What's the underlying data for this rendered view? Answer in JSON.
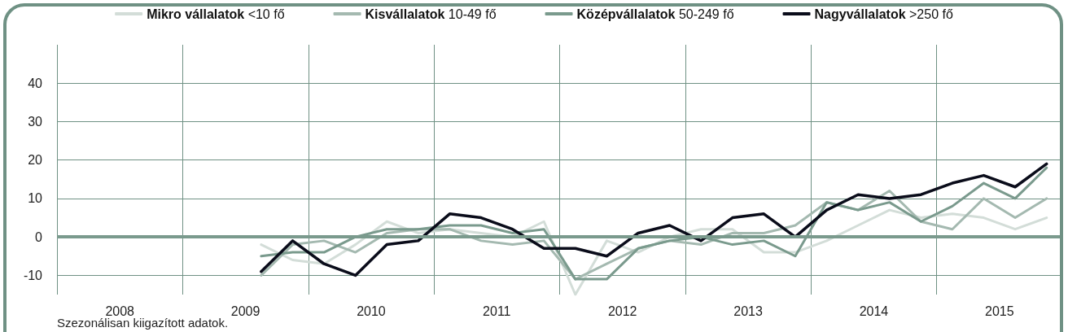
{
  "chart_data": {
    "type": "line",
    "x": [
      2009.625,
      2009.875,
      2010.125,
      2010.375,
      2010.625,
      2010.875,
      2011.125,
      2011.375,
      2011.625,
      2011.875,
      2012.125,
      2012.375,
      2012.625,
      2012.875,
      2013.125,
      2013.375,
      2013.625,
      2013.875,
      2014.125,
      2014.375,
      2014.625,
      2014.875,
      2015.125,
      2015.375,
      2015.625,
      2015.875
    ],
    "series": [
      {
        "name": "Mikro vállalatok <10 fő",
        "color": "#d3ddd8",
        "values": [
          -2,
          -6,
          -7,
          -2,
          4,
          1,
          2,
          1,
          0,
          4,
          -15,
          -1,
          -4,
          0,
          2,
          2,
          -4,
          -4,
          -1,
          3,
          7,
          5,
          6,
          5,
          2,
          5
        ]
      },
      {
        "name": "Kisvállalatok 10-49 fő",
        "color": "#a4b9b0",
        "values": [
          -10,
          -2,
          -1,
          -4,
          1,
          2,
          2,
          -1,
          -2,
          -1,
          -11,
          -7,
          -3,
          -1,
          -2,
          1,
          1,
          3,
          9,
          7,
          12,
          4,
          2,
          10,
          5,
          10
        ]
      },
      {
        "name": "Középvállalatok 50-249 fő",
        "color": "#7a9a8d",
        "values": [
          -5,
          -4,
          -4,
          0,
          2,
          2,
          3,
          3,
          1,
          2,
          -11,
          -11,
          -3,
          -1,
          0,
          -2,
          -1,
          -5,
          9,
          7,
          9,
          4,
          8,
          14,
          10,
          18
        ]
      },
      {
        "name": "Nagyvállalatok >250 fő",
        "color": "#0a0c1a",
        "values": [
          -9,
          -1,
          -7,
          -10,
          -2,
          -1,
          6,
          5,
          2,
          -3,
          -3,
          -5,
          1,
          3,
          -1,
          5,
          6,
          0,
          7,
          11,
          10,
          11,
          14,
          16,
          13,
          19
        ]
      }
    ],
    "xlim": [
      2008,
      2016
    ],
    "xticks": [
      {
        "value": 2008,
        "label": null
      },
      {
        "value": 2008.5,
        "label": "2008"
      },
      {
        "value": 2009,
        "label": null
      },
      {
        "value": 2009.5,
        "label": "2009"
      },
      {
        "value": 2010,
        "label": null
      },
      {
        "value": 2010.5,
        "label": "2010"
      },
      {
        "value": 2011,
        "label": null
      },
      {
        "value": 2011.5,
        "label": "2011"
      },
      {
        "value": 2012,
        "label": null
      },
      {
        "value": 2012.5,
        "label": "2012"
      },
      {
        "value": 2013,
        "label": null
      },
      {
        "value": 2013.5,
        "label": "2013"
      },
      {
        "value": 2014,
        "label": null
      },
      {
        "value": 2014.5,
        "label": "2014"
      },
      {
        "value": 2015,
        "label": null
      },
      {
        "value": 2015.5,
        "label": "2015"
      },
      {
        "value": 2016,
        "label": null
      }
    ],
    "ylim": [
      -15,
      50
    ],
    "yticks": [
      -10,
      0,
      10,
      20,
      30,
      40
    ],
    "ref_lines": [
      {
        "axis": "y",
        "value": 0,
        "label": null,
        "color": "#7a9a8d"
      }
    ],
    "annotations": [
      "Szezonálisan kiigazított adatok."
    ],
    "grid": true,
    "legend": "top",
    "marker": "none",
    "line_style": "solid"
  }
}
